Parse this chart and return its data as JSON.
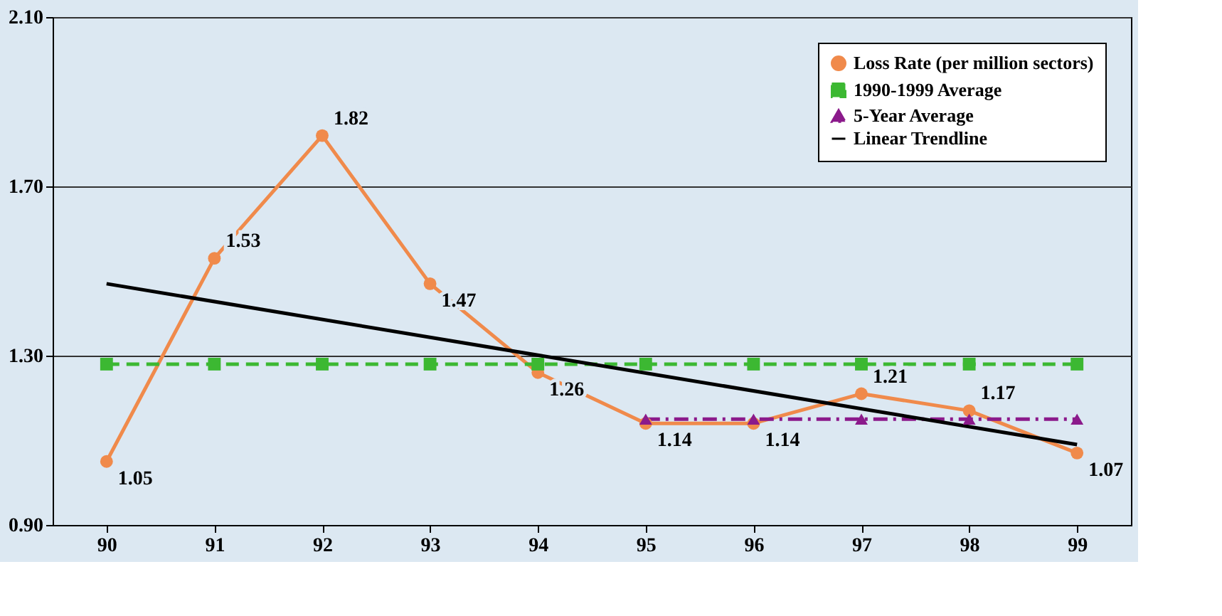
{
  "chart_data": {
    "type": "line",
    "categories": [
      "90",
      "91",
      "92",
      "93",
      "94",
      "95",
      "96",
      "97",
      "98",
      "99"
    ],
    "ylim": [
      0.9,
      2.1
    ],
    "yticks": [
      {
        "value": 0.9,
        "label": "0.90"
      },
      {
        "value": 1.3,
        "label": "1.30"
      },
      {
        "value": 1.7,
        "label": "1.70"
      },
      {
        "value": 2.1,
        "label": "2.10"
      }
    ],
    "grid": "y",
    "legend": "top right",
    "series": [
      {
        "name": "Loss Rate (per million sectors)",
        "color": "#f08a4b",
        "marker": "circle",
        "line_style": "solid",
        "values": [
          1.05,
          1.53,
          1.82,
          1.47,
          1.26,
          1.14,
          1.14,
          1.21,
          1.17,
          1.07
        ],
        "value_labels": [
          "1.05",
          "1.53",
          "1.82",
          "1.47",
          "1.26",
          "1.14",
          "1.14",
          "1.21",
          "1.17",
          "1.07"
        ]
      },
      {
        "name": "1990-1999 Average",
        "color": "#3cb832",
        "marker": "square",
        "line_style": "dashed",
        "values": [
          1.28,
          1.28,
          1.28,
          1.28,
          1.28,
          1.28,
          1.28,
          1.28,
          1.28,
          1.28
        ]
      },
      {
        "name": "5-Year Average",
        "color": "#8b1a8b",
        "marker": "triangle",
        "line_style": "dashdot",
        "values": [
          null,
          null,
          null,
          null,
          null,
          1.15,
          1.15,
          1.15,
          1.15,
          1.15
        ]
      },
      {
        "name": "Linear Trendline",
        "color": "#000000",
        "marker": "none",
        "line_style": "solid",
        "x": [
          "90",
          "99"
        ],
        "values": [
          1.47,
          1.09
        ]
      }
    ]
  }
}
